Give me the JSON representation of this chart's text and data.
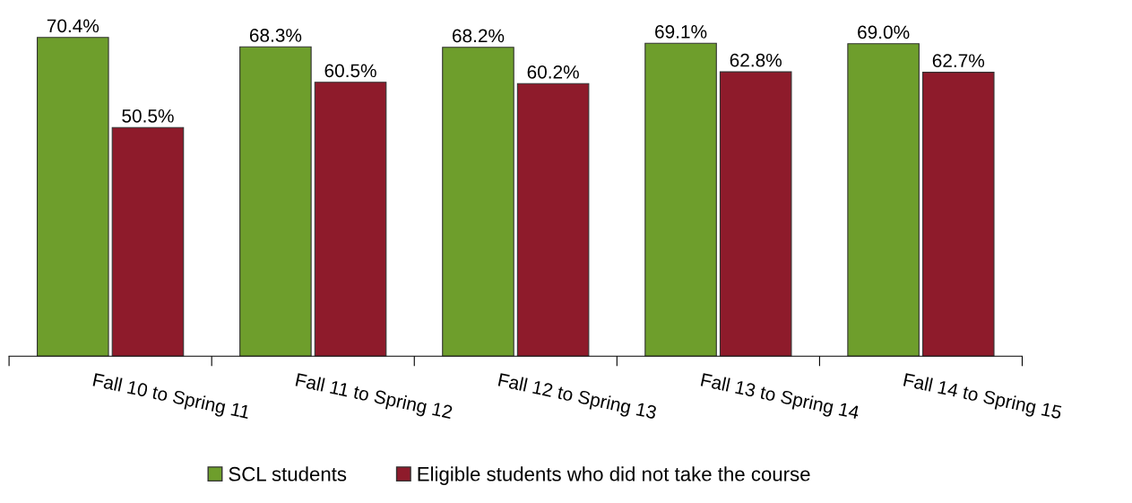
{
  "chart_data": {
    "type": "bar",
    "categories": [
      "Fall 10 to Spring 11",
      "Fall 11 to Spring 12",
      "Fall 12 to Spring 13",
      "Fall 13 to Spring 14",
      "Fall 14 to Spring 15"
    ],
    "series": [
      {
        "name": "SCL students",
        "color": "#6e9e2c",
        "values": [
          70.4,
          68.3,
          68.2,
          69.1,
          69.0
        ],
        "value_labels": [
          "70.4%",
          "68.3%",
          "68.2%",
          "69.1%",
          "69.0%"
        ]
      },
      {
        "name": "Eligible students who did not take the course",
        "color": "#8e1b2b",
        "values": [
          50.5,
          60.5,
          60.2,
          62.8,
          62.7
        ],
        "value_labels": [
          "50.5%",
          "60.5%",
          "60.2%",
          "62.8%",
          "62.7%"
        ]
      }
    ],
    "legend": "bottom",
    "grid": false
  }
}
